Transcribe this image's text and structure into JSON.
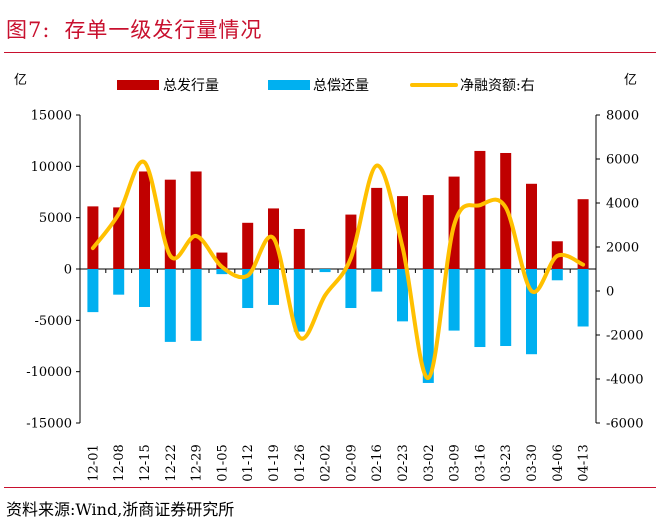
{
  "figure": {
    "title_no": "图7:",
    "title_text": "存单一级发行量情况",
    "source": "资料来源:Wind,浙商证券研究所"
  },
  "chart_data": {
    "type": "bar+line",
    "title": "存单一级发行量情况",
    "left_unit": "亿",
    "right_unit": "亿",
    "categories": [
      "12-01",
      "12-08",
      "12-15",
      "12-22",
      "12-29",
      "01-05",
      "01-12",
      "01-19",
      "01-26",
      "02-02",
      "02-09",
      "02-16",
      "02-23",
      "03-02",
      "03-09",
      "03-16",
      "03-23",
      "03-30",
      "04-06",
      "04-13"
    ],
    "left_ylim": [
      -15000,
      15000
    ],
    "left_ticks": [
      15000,
      10000,
      5000,
      0,
      -5000,
      -10000,
      -15000
    ],
    "right_ylim": [
      -6000,
      8000
    ],
    "right_ticks": [
      8000,
      6000,
      4000,
      2000,
      0,
      -2000,
      -4000,
      -6000
    ],
    "legend_position": "top",
    "series": [
      {
        "name": "总发行量",
        "type": "bar",
        "axis": "left",
        "color": "#c00000",
        "values": [
          6100,
          6000,
          9500,
          8700,
          9500,
          1600,
          4500,
          5900,
          3900,
          0,
          5300,
          7900,
          7100,
          7200,
          9000,
          11500,
          11300,
          8300,
          2700,
          6800
        ]
      },
      {
        "name": "总偿还量",
        "type": "bar",
        "axis": "left",
        "color": "#00b0f0",
        "values": [
          -4200,
          -2500,
          -3700,
          -7100,
          -7000,
          -500,
          -3800,
          -3500,
          -6100,
          -300,
          -3800,
          -2200,
          -5100,
          -11100,
          -6000,
          -7600,
          -7500,
          -8300,
          -1100,
          -5600
        ]
      },
      {
        "name": "净融资额:右",
        "type": "line",
        "axis": "right",
        "color": "#ffc000",
        "values": [
          1950,
          3500,
          5850,
          1600,
          2500,
          1100,
          700,
          2400,
          -2100,
          -200,
          1500,
          5700,
          2000,
          -3950,
          3000,
          3900,
          3800,
          0,
          1600,
          1200
        ]
      }
    ]
  }
}
